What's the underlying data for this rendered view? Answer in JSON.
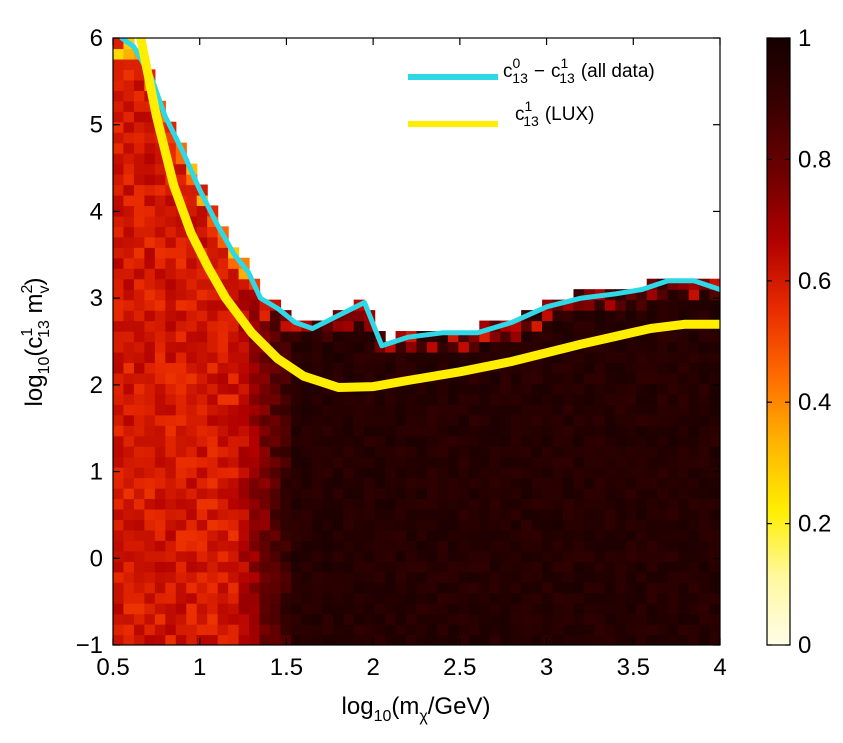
{
  "chart_data": [
    {
      "type": "heatmap",
      "title": "",
      "xlabel": "log10(mχ/GeV)",
      "ylabel": "log10(c¹13 mv²)",
      "xlim": [
        0.5,
        4
      ],
      "ylim": [
        -1,
        6
      ],
      "x_ticks": [
        0.5,
        1,
        1.5,
        2,
        2.5,
        3,
        3.5,
        4
      ],
      "y_ticks": [
        -1,
        0,
        1,
        2,
        3,
        4,
        5,
        6
      ],
      "x_tick_labels": [
        "0.5",
        "1",
        "1.5",
        "2",
        "2.5",
        "3",
        "3.5",
        "4"
      ],
      "y_tick_labels": [
        "−1",
        "0",
        "1",
        "2",
        "3",
        "4",
        "5",
        "6"
      ],
      "grid": false,
      "legend_position": "top-right",
      "heatmap_regions": {
        "description": "Posterior probability density; ~0.55-0.65 (red-orange) for low mass, ~0.95 (near black) for log10(m) > 1.5, empty (0) above upper boundary",
        "low_mass_value": 0.6,
        "high_mass_value": 0.95,
        "transition_x": [
          1.2,
          1.55
        ]
      },
      "series": [
        {
          "name": "c13 0 − c13 1 (all data)",
          "color": "#2fd8e6",
          "x": [
            0.55,
            0.62,
            0.72,
            0.8,
            0.9,
            1.0,
            1.1,
            1.2,
            1.28,
            1.35,
            1.45,
            1.55,
            1.65,
            1.75,
            1.85,
            1.95,
            2.05,
            2.2,
            2.4,
            2.6,
            2.8,
            3.0,
            3.2,
            3.4,
            3.55,
            3.7,
            3.85,
            4.0
          ],
          "y": [
            6.0,
            5.9,
            5.55,
            5.1,
            4.7,
            4.25,
            3.85,
            3.5,
            3.3,
            3.0,
            2.88,
            2.72,
            2.65,
            2.75,
            2.85,
            2.95,
            2.45,
            2.55,
            2.6,
            2.6,
            2.72,
            2.9,
            3.0,
            3.05,
            3.1,
            3.2,
            3.2,
            3.1
          ]
        },
        {
          "name": "c13 1 (LUX)",
          "color": "#ffee00",
          "x": [
            0.66,
            0.75,
            0.85,
            0.95,
            1.05,
            1.15,
            1.3,
            1.45,
            1.6,
            1.8,
            2.0,
            2.2,
            2.5,
            2.8,
            3.0,
            3.2,
            3.4,
            3.6,
            3.8,
            4.0
          ],
          "y": [
            6.0,
            5.1,
            4.3,
            3.75,
            3.35,
            3.0,
            2.6,
            2.3,
            2.1,
            1.97,
            1.98,
            2.05,
            2.15,
            2.27,
            2.37,
            2.47,
            2.56,
            2.65,
            2.7,
            2.7
          ]
        }
      ],
      "legend": [
        {
          "label": "c",
          "sup": "0",
          "sub": "13",
          "dash": "−",
          "label2": "c",
          "sup2": "1",
          "sub2": "13",
          "suffix": "(all data)"
        },
        {
          "label": "c",
          "sup": "1",
          "sub": "13",
          "suffix": "(LUX)"
        }
      ],
      "colorbar": {
        "min": 0,
        "max": 1,
        "ticks": [
          0,
          0.2,
          0.4,
          0.6,
          0.8,
          1
        ],
        "tick_labels": [
          "0",
          "0.2",
          "0.4",
          "0.6",
          "0.8",
          "1"
        ],
        "colormap": "hot-reversed",
        "stops": [
          "#fffde8",
          "#fff8a0",
          "#ffee00",
          "#ffb400",
          "#ff6a00",
          "#e82a00",
          "#b00000",
          "#6e0000",
          "#3a0000",
          "#150000"
        ]
      }
    }
  ],
  "labels": {
    "xlabel_parts": {
      "pre": "log",
      "sub1": "10",
      "mid": "(m",
      "sub2": "χ",
      "post": "/GeV)"
    },
    "ylabel_parts": {
      "pre": "log",
      "sub1": "10",
      "mid": "(c",
      "sup1": "1",
      "sub2": "13",
      "mid2": " m",
      "sup2": "2",
      "sub3": "v",
      "post": ")"
    }
  }
}
